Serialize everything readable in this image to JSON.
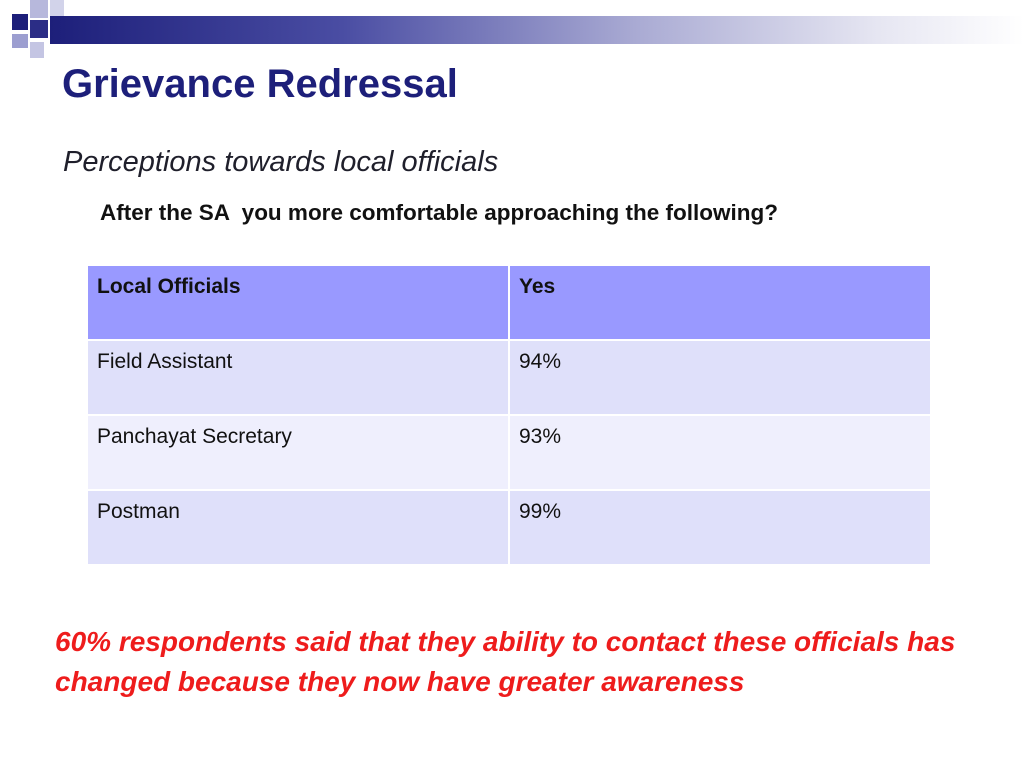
{
  "slide": {
    "title": "Grievance Redressal",
    "subtitle": "Perceptions towards local officials",
    "question": "After the SA  you more comfortable approaching the following?",
    "table": {
      "headers": [
        "Local Officials",
        "Yes"
      ],
      "rows": [
        [
          "Field Assistant",
          "94%"
        ],
        [
          "Panchayat Secretary",
          "93%"
        ],
        [
          "Postman",
          "99%"
        ]
      ]
    },
    "note": "60% respondents said that they ability to contact these officials has changed because they now have greater awareness"
  },
  "colors": {
    "title": "#1d1f7a",
    "header_fill": "#9999ff",
    "row_fill_odd": "#dfe0fa",
    "row_fill_even": "#efeffd",
    "note_text": "#ee1c1c"
  }
}
